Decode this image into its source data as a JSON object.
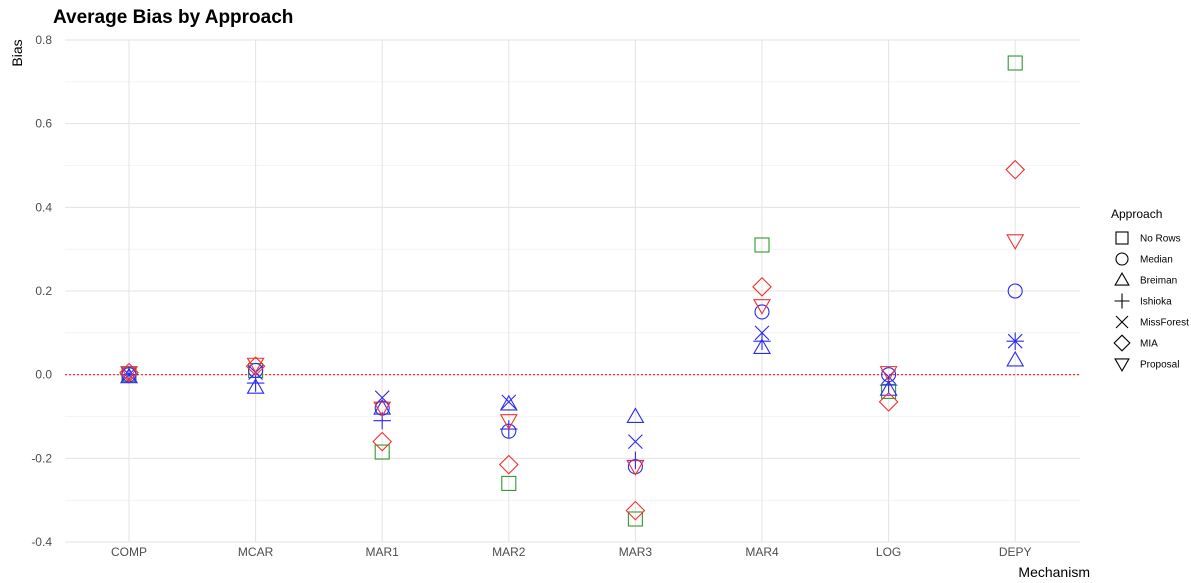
{
  "chart_data": {
    "type": "scatter",
    "title": "Average Bias by Approach",
    "xlabel": "Mechanism",
    "ylabel": "Bias",
    "categories": [
      "COMP",
      "MCAR",
      "MAR1",
      "MAR2",
      "MAR3",
      "MAR4",
      "LOG",
      "DEPY"
    ],
    "ylim": [
      -0.4,
      0.8
    ],
    "yticks": [
      -0.4,
      -0.2,
      0.0,
      0.2,
      0.4,
      0.6,
      0.8
    ],
    "ytick_labels": [
      "-0.4",
      "-0.2",
      "0.0",
      "0.2",
      "0.4",
      "0.6",
      "0.8"
    ],
    "grid": true,
    "reference_line": {
      "y": 0,
      "color": "#e8251e",
      "style": "dotted"
    },
    "legend": {
      "title": "Approach",
      "position": "right"
    },
    "series": [
      {
        "name": "No Rows",
        "shape": "square",
        "color": "#2e9a2e",
        "values": [
          0.0,
          0.01,
          -0.185,
          -0.26,
          -0.345,
          0.31,
          -0.04,
          0.745
        ]
      },
      {
        "name": "Median",
        "shape": "circle",
        "color": "#2b2bf0",
        "values": [
          0.0,
          0.01,
          -0.08,
          -0.135,
          -0.22,
          0.15,
          0.0,
          0.2
        ]
      },
      {
        "name": "Breiman",
        "shape": "triangle-up",
        "color": "#2b2bf0",
        "values": [
          -0.005,
          -0.03,
          -0.08,
          -0.07,
          -0.1,
          0.065,
          -0.035,
          0.035
        ]
      },
      {
        "name": "Ishioka",
        "shape": "plus",
        "color": "#2b2bf0",
        "values": [
          0.0,
          -0.02,
          -0.11,
          -0.13,
          -0.205,
          0.08,
          -0.025,
          0.08
        ]
      },
      {
        "name": "MissForest",
        "shape": "cross",
        "color": "#2b2bf0",
        "values": [
          0.0,
          0.005,
          -0.055,
          -0.065,
          -0.16,
          0.1,
          -0.005,
          0.08
        ]
      },
      {
        "name": "MIA",
        "shape": "diamond",
        "color": "#f23030",
        "values": [
          0.005,
          0.02,
          -0.16,
          -0.215,
          -0.325,
          0.21,
          -0.065,
          0.49
        ]
      },
      {
        "name": "Proposal",
        "shape": "triangle-down",
        "color": "#f23030",
        "values": [
          0.005,
          0.025,
          -0.08,
          -0.11,
          -0.22,
          0.165,
          0.005,
          0.32
        ]
      }
    ]
  }
}
